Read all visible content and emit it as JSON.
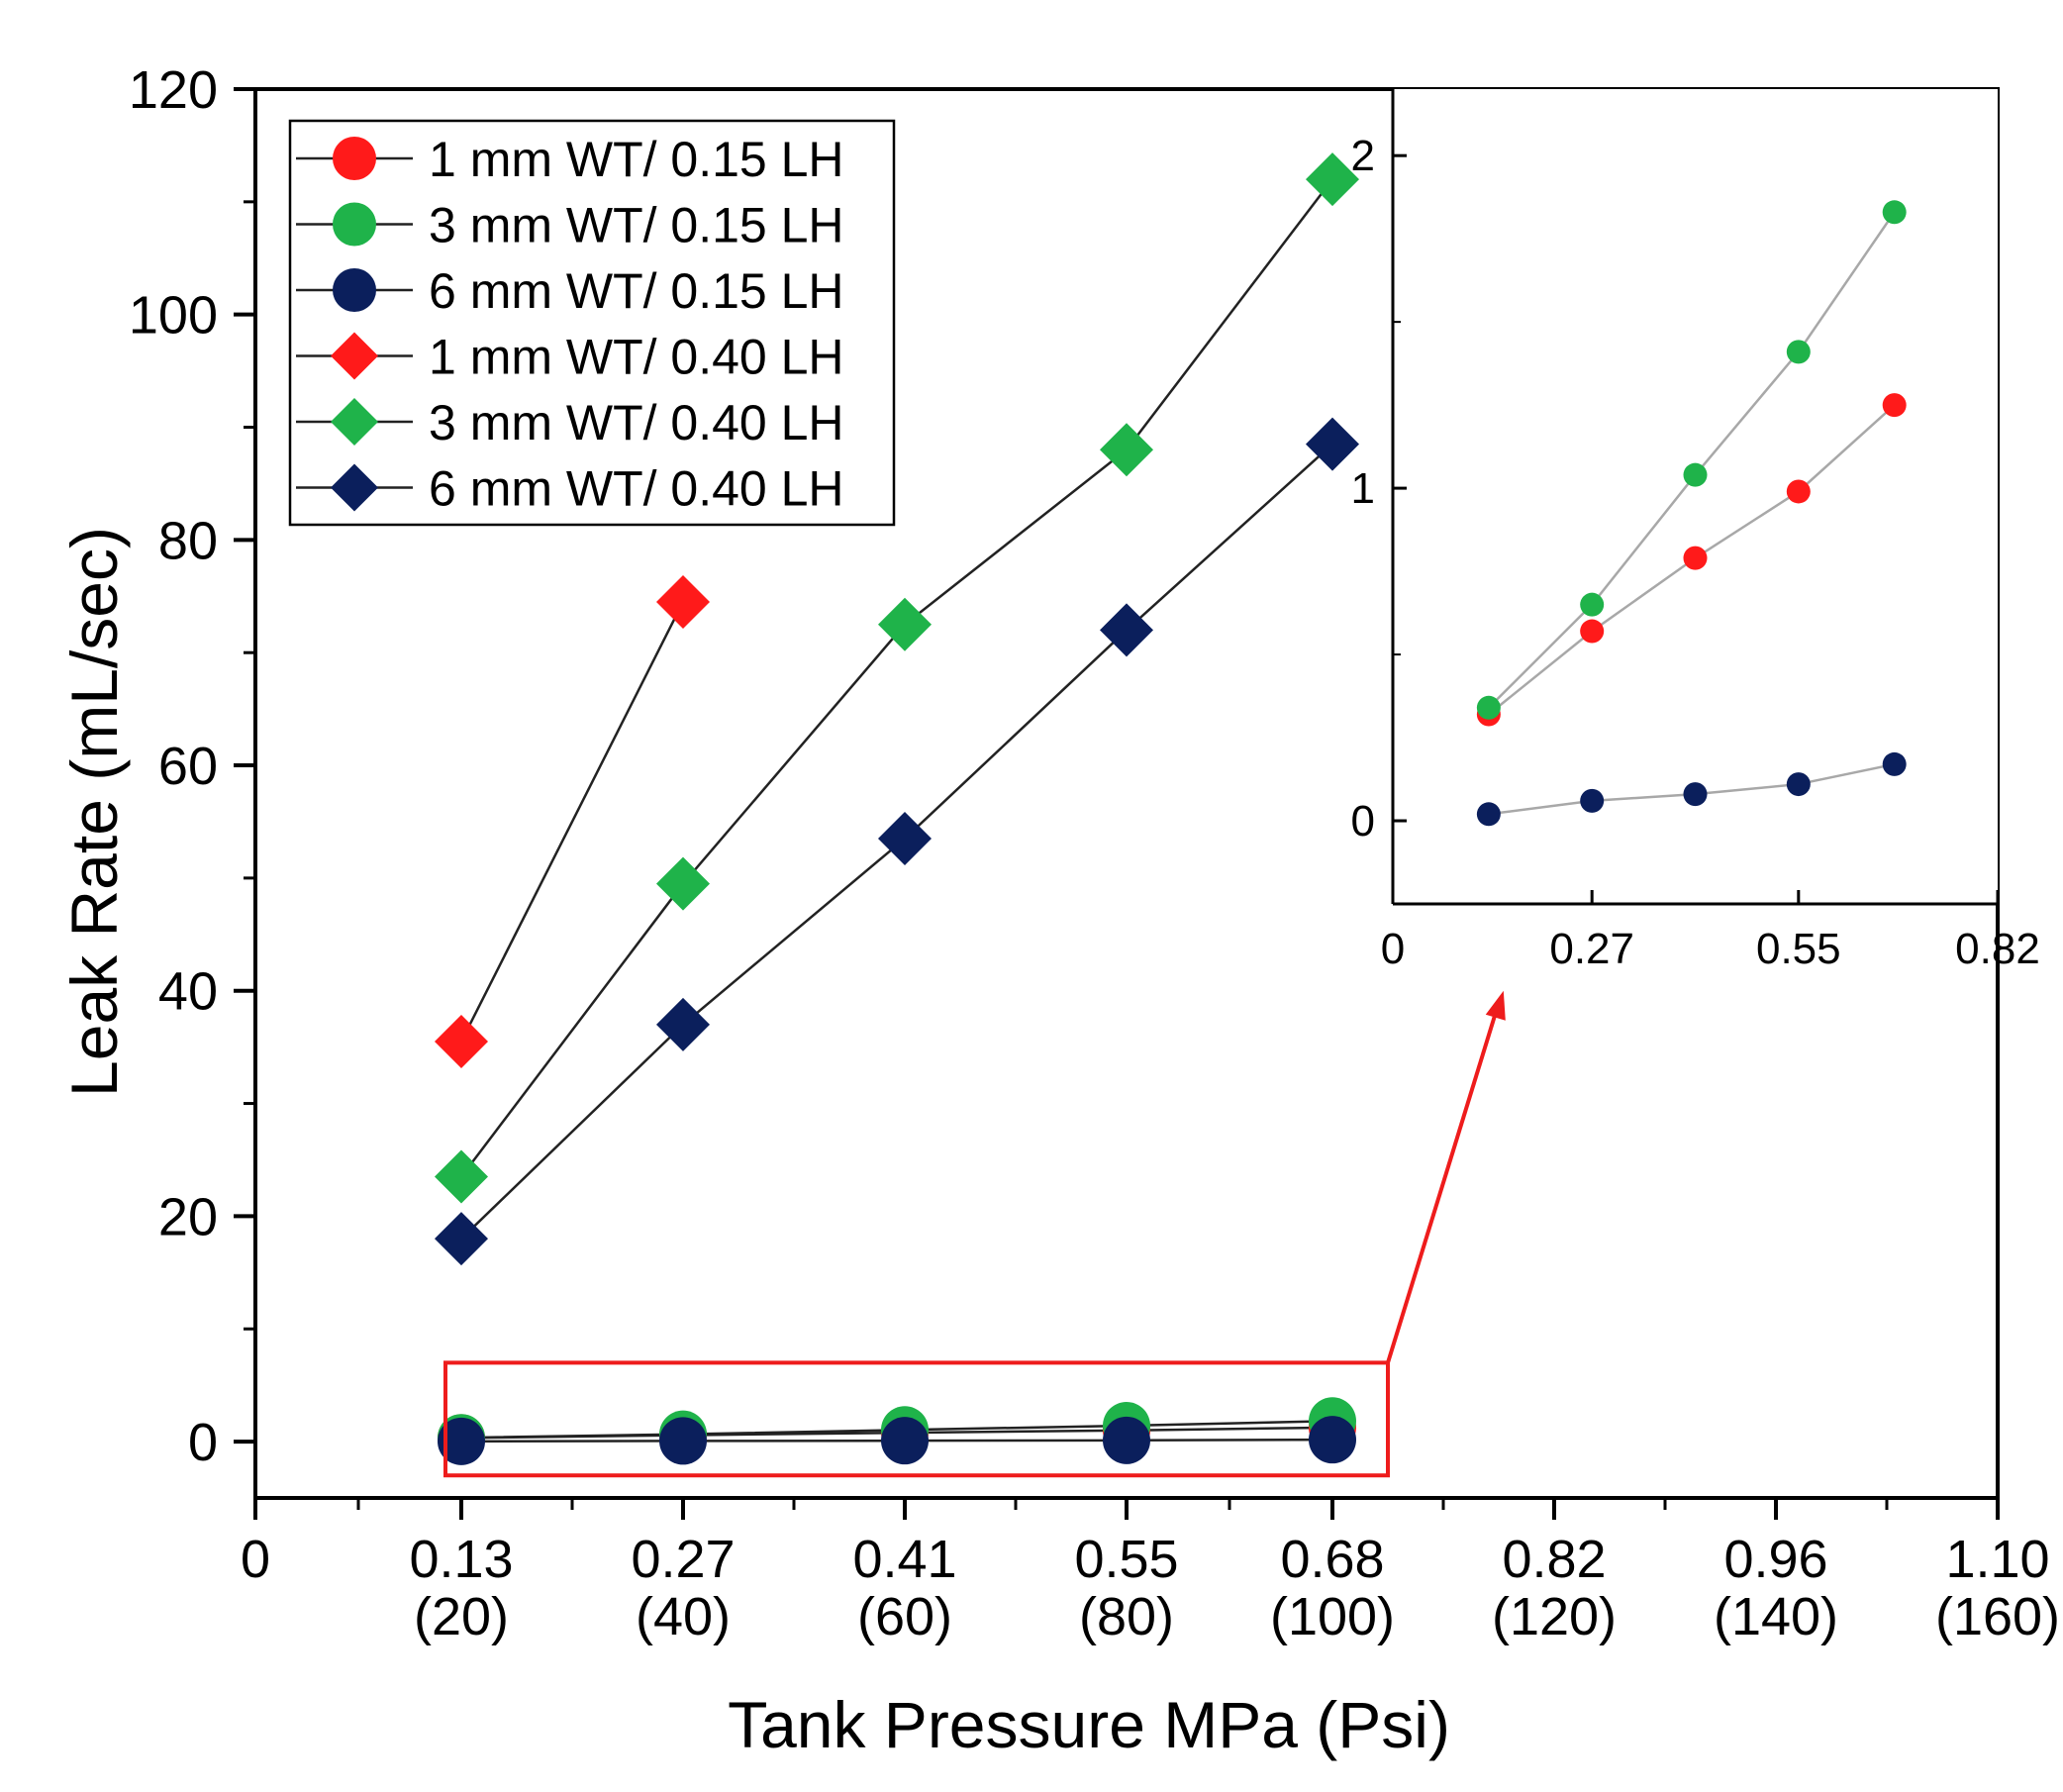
{
  "colors": {
    "red": "#ff1a1a",
    "green": "#1fb34a",
    "navy": "#0b1f5c",
    "line": "#222222",
    "inset_line": "#a8a8a8",
    "highlight": "#ee1c1c"
  },
  "chart_data": {
    "type": "line",
    "xlabel": "Tank Pressure MPa (Psi)",
    "ylabel": "Leak Rate (mL/sec)",
    "xlim": [
      0,
      1.1
    ],
    "ylim": [
      -5,
      120
    ],
    "y_ticks": [
      "0",
      "20",
      "40",
      "60",
      "80",
      "100",
      "120"
    ],
    "x_ticks": [
      {
        "v": 0,
        "top": "0",
        "bottom": ""
      },
      {
        "v": 0.13,
        "top": "0.13",
        "bottom": "(20)"
      },
      {
        "v": 0.27,
        "top": "0.27",
        "bottom": "(40)"
      },
      {
        "v": 0.41,
        "top": "0.41",
        "bottom": "(60)"
      },
      {
        "v": 0.55,
        "top": "0.55",
        "bottom": "(80)"
      },
      {
        "v": 0.68,
        "top": "0.68",
        "bottom": "(100)"
      },
      {
        "v": 0.82,
        "top": "0.82",
        "bottom": "(120)"
      },
      {
        "v": 0.96,
        "top": "0.96",
        "bottom": "(140)"
      },
      {
        "v": 1.1,
        "top": "1.10",
        "bottom": "(160)"
      }
    ],
    "legend_position": "top-left",
    "grid": false,
    "series": [
      {
        "name": "1 mm WT/ 0.15 LH",
        "marker": "circle",
        "color": "red",
        "x": [
          0.13,
          0.27,
          0.41,
          0.55,
          0.68
        ],
        "y": [
          0.32,
          0.57,
          0.79,
          0.99,
          1.25
        ]
      },
      {
        "name": "3 mm WT/ 0.15 LH",
        "marker": "circle",
        "color": "green",
        "x": [
          0.13,
          0.27,
          0.41,
          0.55,
          0.68
        ],
        "y": [
          0.34,
          0.65,
          1.04,
          1.41,
          1.83
        ]
      },
      {
        "name": "6 mm WT/ 0.15 LH",
        "marker": "circle",
        "color": "navy",
        "x": [
          0.13,
          0.27,
          0.41,
          0.55,
          0.68
        ],
        "y": [
          0.02,
          0.06,
          0.08,
          0.11,
          0.17
        ]
      },
      {
        "name": "1 mm WT/ 0.40 LH",
        "marker": "diamond",
        "color": "red",
        "x": [
          0.13,
          0.27
        ],
        "y": [
          35.5,
          74.5
        ]
      },
      {
        "name": "3 mm WT/ 0.40 LH",
        "marker": "diamond",
        "color": "green",
        "x": [
          0.13,
          0.27,
          0.41,
          0.55,
          0.68
        ],
        "y": [
          23.5,
          49.5,
          72.5,
          88,
          112
        ]
      },
      {
        "name": "6 mm WT/ 0.40 LH",
        "marker": "diamond",
        "color": "navy",
        "x": [
          0.13,
          0.27,
          0.41,
          0.55,
          0.68
        ],
        "y": [
          18,
          37,
          53.5,
          72,
          88.5
        ]
      }
    ],
    "inset": {
      "xlim": [
        0,
        0.82
      ],
      "ylim": [
        -0.25,
        2.2
      ],
      "x_ticks": [
        "0",
        "0.27",
        "0.55",
        "0.82"
      ],
      "y_ticks": [
        "0",
        "1",
        "2"
      ],
      "series_shown": [
        "1 mm WT/ 0.15 LH",
        "3 mm WT/ 0.15 LH",
        "6 mm WT/ 0.15 LH"
      ]
    }
  }
}
